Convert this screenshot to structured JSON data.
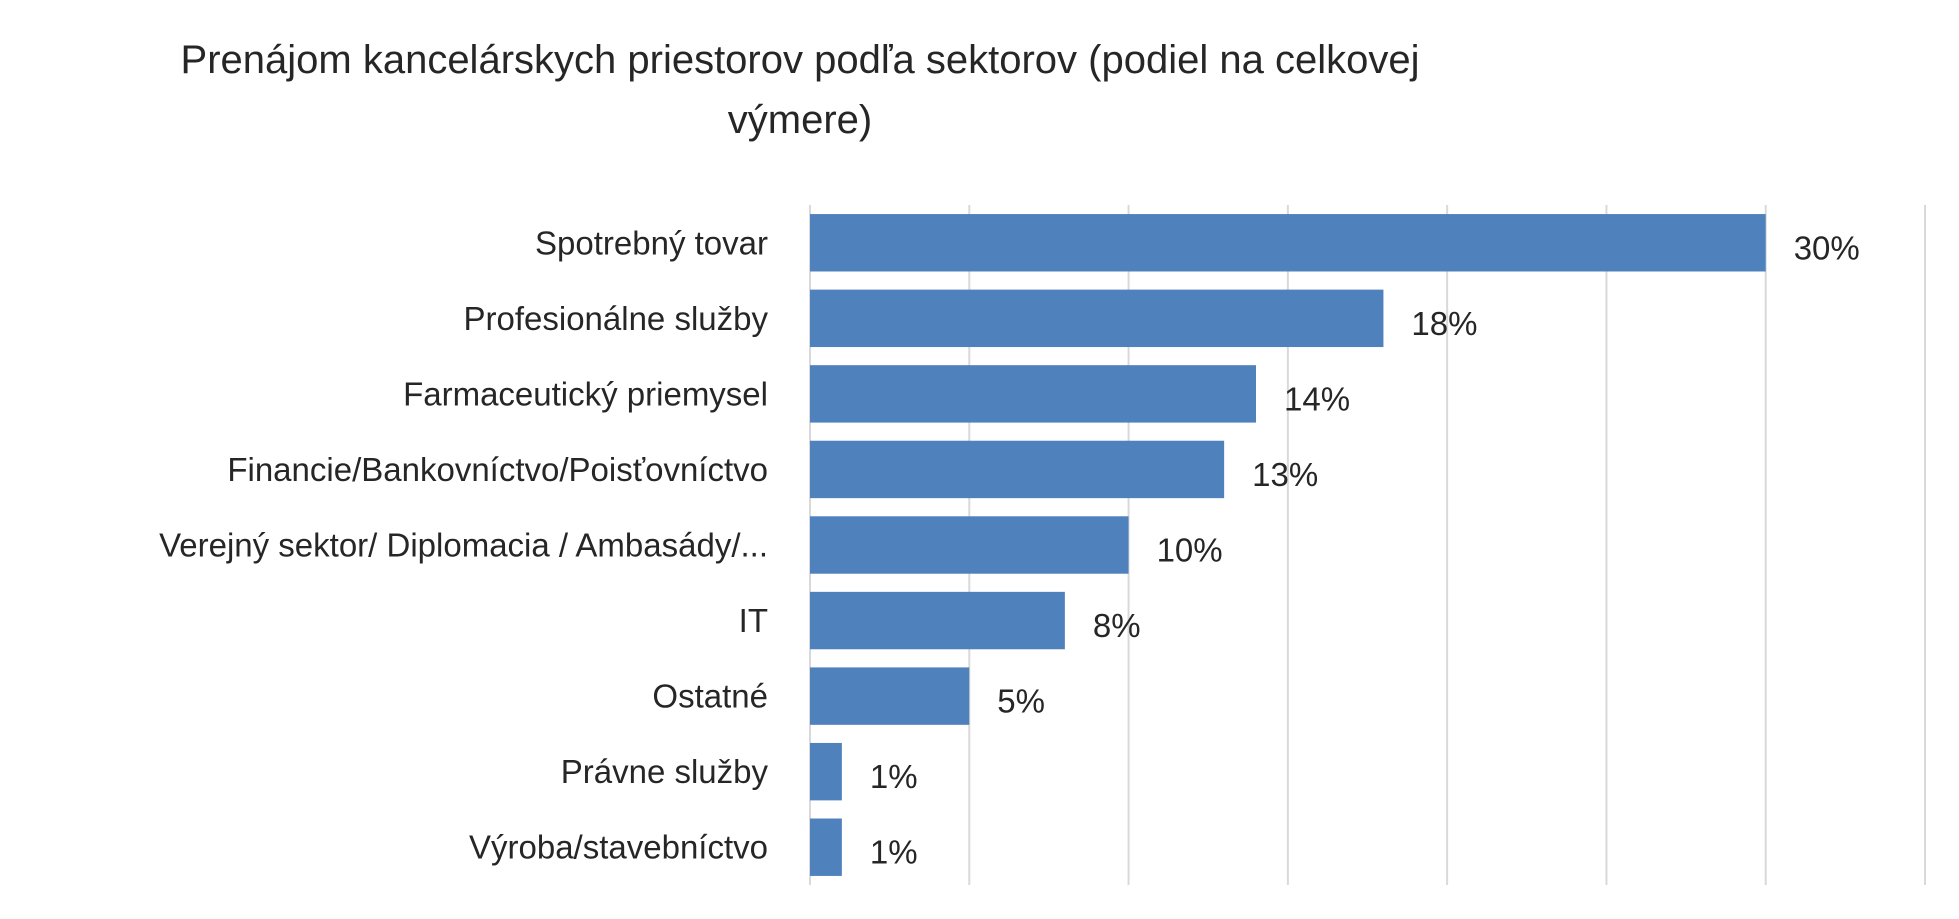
{
  "chart_data": {
    "type": "bar",
    "orientation": "horizontal",
    "title": "Prenájom kancelárskych priestorov podľa sektorov (podiel na celkovej výmere)",
    "categories": [
      "Spotrebný tovar",
      "Profesionálne služby",
      "Farmaceutický priemysel",
      "Financie/Bankovníctvo/Poisťovníctvo",
      "Verejný sektor/ Diplomacia / Ambasády/...",
      "IT",
      "Ostatné",
      "Právne služby",
      "Výroba/stavebníctvo"
    ],
    "values": [
      30,
      18,
      14,
      13,
      10,
      8,
      5,
      1,
      1
    ],
    "data_labels": [
      "30%",
      "18%",
      "14%",
      "13%",
      "10%",
      "8%",
      "5%",
      "1%",
      "1%"
    ],
    "xlim": [
      0,
      35
    ],
    "x_unit": "%",
    "grid": true,
    "bar_color": "#4f81bd",
    "grid_color": "#d9d9d9",
    "text_color": "#262626",
    "legend": "none"
  }
}
